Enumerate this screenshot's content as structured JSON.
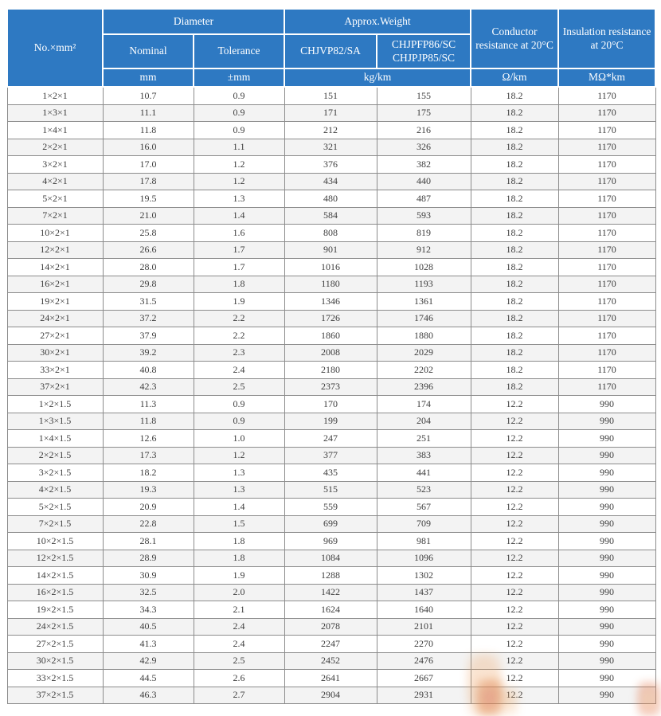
{
  "colors": {
    "header_bg": "#2e79c2",
    "header_text": "#ffffff",
    "grid_line": "#8c8c8c",
    "row_stripe": "#f3f3f3",
    "body_text": "#3d3d3d",
    "watermark_orange": "#efa05a",
    "watermark_red": "#d9604a"
  },
  "table": {
    "header": {
      "col_no": "No.×mm²",
      "group_diameter": "Diameter",
      "group_weight": "Approx.Weight",
      "nominal": "Nominal",
      "tolerance": "Tolerance",
      "weight_type_a": "CHJVP82/SA",
      "weight_type_b_line1": "CHJPFP86/SC",
      "weight_type_b_line2": "CHJPJP85/SC",
      "conductor_resistance": "Conductor resistance at 20°C",
      "insulation_resistance": "Insulation resistance at 20°C",
      "unit_nominal": "mm",
      "unit_tolerance": "±mm",
      "unit_weight": "kg/km",
      "unit_conductor": "Ω/km",
      "unit_insulation": "MΩ*km"
    },
    "rows": [
      [
        "1×2×1",
        "10.7",
        "0.9",
        "151",
        "155",
        "18.2",
        "1170"
      ],
      [
        "1×3×1",
        "11.1",
        "0.9",
        "171",
        "175",
        "18.2",
        "1170"
      ],
      [
        "1×4×1",
        "11.8",
        "0.9",
        "212",
        "216",
        "18.2",
        "1170"
      ],
      [
        "2×2×1",
        "16.0",
        "1.1",
        "321",
        "326",
        "18.2",
        "1170"
      ],
      [
        "3×2×1",
        "17.0",
        "1.2",
        "376",
        "382",
        "18.2",
        "1170"
      ],
      [
        "4×2×1",
        "17.8",
        "1.2",
        "434",
        "440",
        "18.2",
        "1170"
      ],
      [
        "5×2×1",
        "19.5",
        "1.3",
        "480",
        "487",
        "18.2",
        "1170"
      ],
      [
        "7×2×1",
        "21.0",
        "1.4",
        "584",
        "593",
        "18.2",
        "1170"
      ],
      [
        "10×2×1",
        "25.8",
        "1.6",
        "808",
        "819",
        "18.2",
        "1170"
      ],
      [
        "12×2×1",
        "26.6",
        "1.7",
        "901",
        "912",
        "18.2",
        "1170"
      ],
      [
        "14×2×1",
        "28.0",
        "1.7",
        "1016",
        "1028",
        "18.2",
        "1170"
      ],
      [
        "16×2×1",
        "29.8",
        "1.8",
        "1180",
        "1193",
        "18.2",
        "1170"
      ],
      [
        "19×2×1",
        "31.5",
        "1.9",
        "1346",
        "1361",
        "18.2",
        "1170"
      ],
      [
        "24×2×1",
        "37.2",
        "2.2",
        "1726",
        "1746",
        "18.2",
        "1170"
      ],
      [
        "27×2×1",
        "37.9",
        "2.2",
        "1860",
        "1880",
        "18.2",
        "1170"
      ],
      [
        "30×2×1",
        "39.2",
        "2.3",
        "2008",
        "2029",
        "18.2",
        "1170"
      ],
      [
        "33×2×1",
        "40.8",
        "2.4",
        "2180",
        "2202",
        "18.2",
        "1170"
      ],
      [
        "37×2×1",
        "42.3",
        "2.5",
        "2373",
        "2396",
        "18.2",
        "1170"
      ],
      [
        "1×2×1.5",
        "11.3",
        "0.9",
        "170",
        "174",
        "12.2",
        "990"
      ],
      [
        "1×3×1.5",
        "11.8",
        "0.9",
        "199",
        "204",
        "12.2",
        "990"
      ],
      [
        "1×4×1.5",
        "12.6",
        "1.0",
        "247",
        "251",
        "12.2",
        "990"
      ],
      [
        "2×2×1.5",
        "17.3",
        "1.2",
        "377",
        "383",
        "12.2",
        "990"
      ],
      [
        "3×2×1.5",
        "18.2",
        "1.3",
        "435",
        "441",
        "12.2",
        "990"
      ],
      [
        "4×2×1.5",
        "19.3",
        "1.3",
        "515",
        "523",
        "12.2",
        "990"
      ],
      [
        "5×2×1.5",
        "20.9",
        "1.4",
        "559",
        "567",
        "12.2",
        "990"
      ],
      [
        "7×2×1.5",
        "22.8",
        "1.5",
        "699",
        "709",
        "12.2",
        "990"
      ],
      [
        "10×2×1.5",
        "28.1",
        "1.8",
        "969",
        "981",
        "12.2",
        "990"
      ],
      [
        "12×2×1.5",
        "28.9",
        "1.8",
        "1084",
        "1096",
        "12.2",
        "990"
      ],
      [
        "14×2×1.5",
        "30.9",
        "1.9",
        "1288",
        "1302",
        "12.2",
        "990"
      ],
      [
        "16×2×1.5",
        "32.5",
        "2.0",
        "1422",
        "1437",
        "12.2",
        "990"
      ],
      [
        "19×2×1.5",
        "34.3",
        "2.1",
        "1624",
        "1640",
        "12.2",
        "990"
      ],
      [
        "24×2×1.5",
        "40.5",
        "2.4",
        "2078",
        "2101",
        "12.2",
        "990"
      ],
      [
        "27×2×1.5",
        "41.3",
        "2.4",
        "2247",
        "2270",
        "12.2",
        "990"
      ],
      [
        "30×2×1.5",
        "42.9",
        "2.5",
        "2452",
        "2476",
        "12.2",
        "990"
      ],
      [
        "33×2×1.5",
        "44.5",
        "2.6",
        "2641",
        "2667",
        "12.2",
        "990"
      ],
      [
        "37×2×1.5",
        "46.3",
        "2.7",
        "2904",
        "2931",
        "12.2",
        "990"
      ]
    ]
  }
}
